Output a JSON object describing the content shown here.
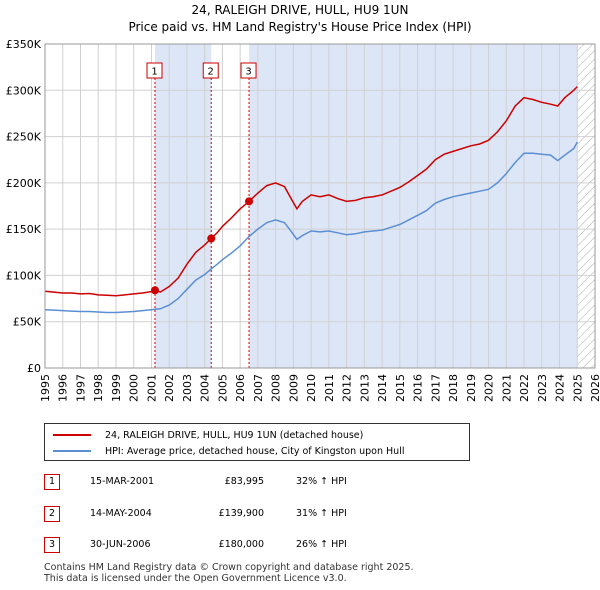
{
  "title_line1": "24, RALEIGH DRIVE, HULL, HU9 1UN",
  "title_line2": "Price paid vs. HM Land Registry's House Price Index (HPI)",
  "colors": {
    "property": "#cc0000",
    "hpi": "#5b8fd4",
    "shade": "#dde6f7",
    "grid": "#d0d0d0",
    "hatch": "#888888"
  },
  "chart_data": {
    "type": "line",
    "title": "Price paid vs. HM Land Registry's House Price Index (HPI)",
    "xlim": [
      1995,
      2026
    ],
    "ylim": [
      0,
      350000
    ],
    "x_ticks": [
      "1995",
      "1996",
      "1997",
      "1998",
      "1999",
      "2000",
      "2001",
      "2002",
      "2003",
      "2004",
      "2005",
      "2006",
      "2007",
      "2008",
      "2009",
      "2010",
      "2011",
      "2012",
      "2013",
      "2014",
      "2015",
      "2016",
      "2017",
      "2018",
      "2019",
      "2020",
      "2021",
      "2022",
      "2023",
      "2024",
      "2025",
      "2026"
    ],
    "y_ticks": [
      {
        "value": 0,
        "label": "£0"
      },
      {
        "value": 50000,
        "label": "£50K"
      },
      {
        "value": 100000,
        "label": "£100K"
      },
      {
        "value": 150000,
        "label": "£150K"
      },
      {
        "value": 200000,
        "label": "£200K"
      },
      {
        "value": 250000,
        "label": "£250K"
      },
      {
        "value": 300000,
        "label": "£300K"
      },
      {
        "value": 350000,
        "label": "£350K"
      }
    ],
    "shaded_regions": [
      [
        2001.2,
        2004.37
      ],
      [
        2006.5,
        2025.0
      ]
    ],
    "future_hatch_from": 2025.0,
    "series": [
      {
        "name": "24, RALEIGH DRIVE, HULL, HU9 1UN (detached house)",
        "color": "#cc0000",
        "x": [
          1995.0,
          1995.5,
          1996.0,
          1996.5,
          1997.0,
          1997.5,
          1998.0,
          1998.5,
          1999.0,
          1999.5,
          2000.0,
          2000.5,
          2001.0,
          2001.2,
          2001.5,
          2002.0,
          2002.5,
          2003.0,
          2003.5,
          2004.0,
          2004.37,
          2004.7,
          2005.0,
          2005.5,
          2006.0,
          2006.5,
          2007.0,
          2007.5,
          2008.0,
          2008.5,
          2008.9,
          2009.2,
          2009.5,
          2010.0,
          2010.5,
          2011.0,
          2011.5,
          2012.0,
          2012.5,
          2013.0,
          2013.5,
          2014.0,
          2014.5,
          2015.0,
          2015.5,
          2016.0,
          2016.5,
          2017.0,
          2017.5,
          2018.0,
          2018.5,
          2019.0,
          2019.5,
          2020.0,
          2020.5,
          2021.0,
          2021.5,
          2022.0,
          2022.5,
          2023.0,
          2023.5,
          2023.9,
          2024.3,
          2024.8,
          2025.0
        ],
        "values": [
          83000,
          82000,
          81000,
          81000,
          80000,
          80500,
          79000,
          78500,
          78000,
          79000,
          80000,
          81000,
          82500,
          83995,
          82000,
          88000,
          97000,
          112000,
          125000,
          133000,
          139900,
          146000,
          153000,
          162000,
          172000,
          180000,
          189000,
          197000,
          200000,
          196000,
          182000,
          172000,
          180000,
          187000,
          185000,
          187000,
          183000,
          180000,
          181000,
          184000,
          185000,
          187000,
          191000,
          195000,
          201000,
          208000,
          215000,
          225000,
          231000,
          234000,
          237000,
          240000,
          242000,
          246000,
          255000,
          267000,
          283000,
          292000,
          290000,
          287000,
          285000,
          283000,
          292000,
          300000,
          304000
        ]
      },
      {
        "name": "HPI: Average price, detached house, City of Kingston upon Hull",
        "color": "#5b8fd4",
        "x": [
          1995.0,
          1995.5,
          1996.0,
          1996.5,
          1997.0,
          1997.5,
          1998.0,
          1998.5,
          1999.0,
          1999.5,
          2000.0,
          2000.5,
          2001.0,
          2001.2,
          2001.5,
          2002.0,
          2002.5,
          2003.0,
          2003.5,
          2004.0,
          2004.37,
          2004.7,
          2005.0,
          2005.5,
          2006.0,
          2006.5,
          2007.0,
          2007.5,
          2008.0,
          2008.5,
          2008.9,
          2009.2,
          2009.5,
          2010.0,
          2010.5,
          2011.0,
          2011.5,
          2012.0,
          2012.5,
          2013.0,
          2013.5,
          2014.0,
          2014.5,
          2015.0,
          2015.5,
          2016.0,
          2016.5,
          2017.0,
          2017.5,
          2018.0,
          2018.5,
          2019.0,
          2019.5,
          2020.0,
          2020.5,
          2021.0,
          2021.5,
          2022.0,
          2022.5,
          2023.0,
          2023.5,
          2023.9,
          2024.3,
          2024.8,
          2025.0
        ],
        "values": [
          63000,
          62500,
          62000,
          61500,
          61000,
          61000,
          60500,
          60000,
          60000,
          60500,
          61000,
          62000,
          63000,
          63500,
          64000,
          68000,
          75000,
          85000,
          95000,
          101000,
          107000,
          112000,
          117000,
          124000,
          132000,
          142000,
          150000,
          157000,
          160000,
          157000,
          147000,
          139000,
          143000,
          148000,
          147000,
          148000,
          146000,
          144000,
          145000,
          147000,
          148000,
          149000,
          152000,
          155000,
          160000,
          165000,
          170000,
          178000,
          182000,
          185000,
          187000,
          189000,
          191000,
          193000,
          200000,
          210000,
          222000,
          232000,
          232000,
          231000,
          230000,
          224000,
          230000,
          237000,
          244000
        ]
      }
    ],
    "markers": [
      {
        "label": "1",
        "x": 2001.2,
        "value": 83995
      },
      {
        "label": "2",
        "x": 2004.37,
        "value": 139900
      },
      {
        "label": "3",
        "x": 2006.5,
        "value": 180000
      }
    ]
  },
  "legend": {
    "property_label": "24, RALEIGH DRIVE, HULL, HU9 1UN (detached house)",
    "hpi_label": "HPI: Average price, detached house, City of Kingston upon Hull"
  },
  "transactions": [
    {
      "num": "1",
      "date": "15-MAR-2001",
      "price": "£83,995",
      "hpi": "32% ↑ HPI"
    },
    {
      "num": "2",
      "date": "14-MAY-2004",
      "price": "£139,900",
      "hpi": "31% ↑ HPI"
    },
    {
      "num": "3",
      "date": "30-JUN-2006",
      "price": "£180,000",
      "hpi": "26% ↑ HPI"
    }
  ],
  "footer": {
    "line1": "Contains HM Land Registry data © Crown copyright and database right 2025.",
    "line2": "This data is licensed under the Open Government Licence v3.0."
  }
}
